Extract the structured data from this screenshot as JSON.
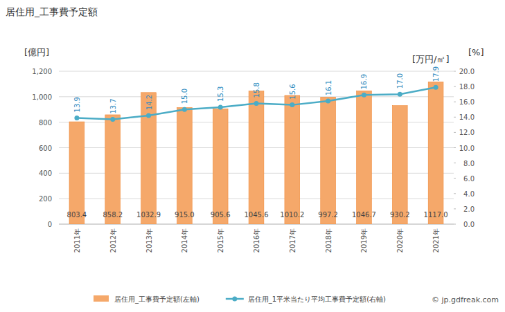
{
  "chart_data": {
    "type": "bar",
    "title": "居住用_工事費予定額",
    "ylabel": "[億円]",
    "y2label": "[万円/㎡]",
    "annotations": [
      "[%]",
      "© jp.gdfreak.com"
    ],
    "categories": [
      "2011年",
      "2012年",
      "2013年",
      "2014年",
      "2015年",
      "2016年",
      "2017年",
      "2018年",
      "2019年",
      "2020年",
      "2021年"
    ],
    "series": [
      {
        "name": "居住用_工事費予定額(左軸)",
        "type": "bar",
        "color": "#f5a86a",
        "values": [
          803.4,
          858.2,
          1032.9,
          915.0,
          905.6,
          1045.6,
          1010.2,
          997.2,
          1046.7,
          930.2,
          1117.0
        ],
        "value_labels": [
          "803.4",
          "858.2",
          "1032.9",
          "915.0",
          "905.6",
          "1045.6",
          "1010.2",
          "997.2",
          "1046.7",
          "930.2",
          "1117.0"
        ]
      },
      {
        "name": "居住用_1平米当たり平均工事費予定額(右軸)",
        "type": "line",
        "axis": "y2",
        "color": "#4bacc6",
        "marker": "circle",
        "values": [
          13.9,
          13.7,
          14.2,
          15.0,
          15.3,
          15.8,
          15.6,
          16.1,
          16.9,
          17.0,
          17.9
        ],
        "value_labels": [
          "13.9",
          "13.7",
          "14.2",
          "15.0",
          "15.3",
          "15.8",
          "15.6",
          "16.1",
          "16.9",
          "17.0",
          "17.9"
        ]
      }
    ],
    "ylim": [
      0,
      1200
    ],
    "yticks": [
      0,
      200,
      400,
      600,
      800,
      {
        "value": 1000,
        "label": "1,000"
      },
      {
        "value": 1200,
        "label": "1,200"
      }
    ],
    "y2lim": [
      0,
      20
    ],
    "y2ticks": [
      {
        "value": 0,
        "label": "0.0"
      },
      {
        "value": 2,
        "label": "2.0"
      },
      {
        "value": 4,
        "label": "4.0"
      },
      {
        "value": 6,
        "label": "6.0"
      },
      {
        "value": 8,
        "label": "8.0"
      },
      {
        "value": 10,
        "label": "10.0"
      },
      {
        "value": 12,
        "label": "12.0"
      },
      {
        "value": 14,
        "label": "14.0"
      },
      {
        "value": 16,
        "label": "16.0"
      },
      {
        "value": 18,
        "label": "18.0"
      },
      {
        "value": 20,
        "label": "20.0"
      }
    ],
    "grid": true,
    "data_labels": true,
    "legend": "bottom"
  }
}
